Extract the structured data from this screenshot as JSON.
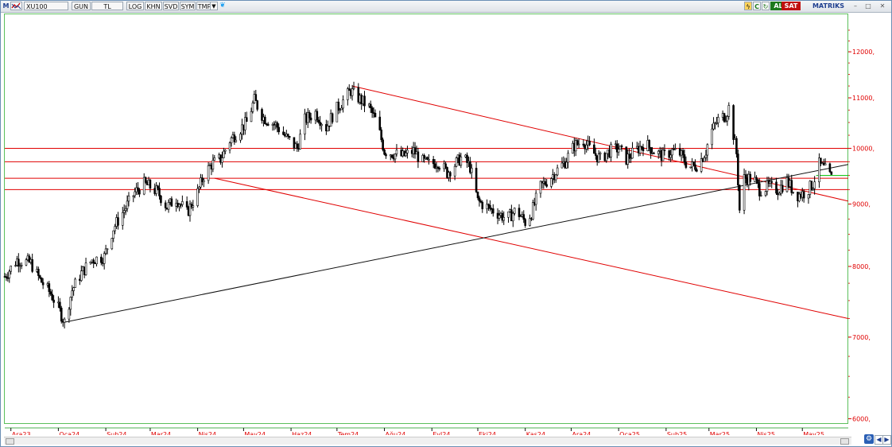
{
  "toolbar": {
    "logo": "M",
    "symbol": "XU100",
    "buttons": [
      "GUN",
      "TL",
      "LOG",
      "KHN",
      "SVD",
      "SYM",
      "TMP"
    ],
    "buy_label": "AL",
    "sell_label": "SAT",
    "brand": "MATRIKS",
    "brand_color": "#1f3f8f",
    "buy_color": "#1e7a1e",
    "sell_color": "#c01010",
    "icons": [
      "chart-type-icon",
      "dropdown-icon",
      "twitter-icon",
      "lightning-icon",
      "info-icon",
      "refresh-icon",
      "minimize-icon",
      "maximize-icon",
      "close-icon",
      "link-icon",
      "scroll-left-icon",
      "scroll-right-icon"
    ]
  },
  "chart_data": {
    "type": "candlestick",
    "title": "",
    "xlabel": "",
    "ylabel": "",
    "y_scale": "log",
    "ylim": [
      5950,
      12900
    ],
    "y_ticks": [
      {
        "value": 6000,
        "label": "6000,"
      },
      {
        "value": 7000,
        "label": "7000,"
      },
      {
        "value": 8000,
        "label": "8000,"
      },
      {
        "value": 9000,
        "label": "9000,"
      },
      {
        "value": 10000,
        "label": "10000,"
      },
      {
        "value": 11000,
        "label": "11000,"
      },
      {
        "value": 12000,
        "label": "12000,"
      }
    ],
    "x_range": [
      "2023-11-27",
      "2025-05-31"
    ],
    "x_ticks": [
      {
        "date": "2023-12-01",
        "label": "Ara23"
      },
      {
        "date": "2024-01-01",
        "label": "Oca24"
      },
      {
        "date": "2024-02-01",
        "label": "Şub24"
      },
      {
        "date": "2024-03-01",
        "label": "Mar24"
      },
      {
        "date": "2024-04-01",
        "label": "Nis24"
      },
      {
        "date": "2024-05-01",
        "label": "May24"
      },
      {
        "date": "2024-06-01",
        "label": "Haz24"
      },
      {
        "date": "2024-07-01",
        "label": "Tem24"
      },
      {
        "date": "2024-08-01",
        "label": "Ağu24"
      },
      {
        "date": "2024-09-01",
        "label": "Eyl24"
      },
      {
        "date": "2024-10-01",
        "label": "Eki24"
      },
      {
        "date": "2024-11-01",
        "label": "Kas24"
      },
      {
        "date": "2024-12-01",
        "label": "Ara24"
      },
      {
        "date": "2025-01-01",
        "label": "Oca25"
      },
      {
        "date": "2025-02-01",
        "label": "Şub25"
      },
      {
        "date": "2025-03-01",
        "label": "Mar25"
      },
      {
        "date": "2025-04-01",
        "label": "Nis25"
      },
      {
        "date": "2025-05-01",
        "label": "May25"
      }
    ],
    "price_path": [
      [
        "2023-11-27",
        7850
      ],
      [
        "2023-12-05",
        8100
      ],
      [
        "2023-12-14",
        8050
      ],
      [
        "2023-12-20",
        7800
      ],
      [
        "2023-12-27",
        7600
      ],
      [
        "2024-01-02",
        7350
      ],
      [
        "2024-01-05",
        7200
      ],
      [
        "2024-01-10",
        7650
      ],
      [
        "2024-01-16",
        7900
      ],
      [
        "2024-01-23",
        8100
      ],
      [
        "2024-01-31",
        8150
      ],
      [
        "2024-02-06",
        8600
      ],
      [
        "2024-02-13",
        8900
      ],
      [
        "2024-02-20",
        9200
      ],
      [
        "2024-02-26",
        9350
      ],
      [
        "2024-03-01",
        9300
      ],
      [
        "2024-03-06",
        9200
      ],
      [
        "2024-03-12",
        8950
      ],
      [
        "2024-03-18",
        9100
      ],
      [
        "2024-03-25",
        8850
      ],
      [
        "2024-04-01",
        9200
      ],
      [
        "2024-04-05",
        9500
      ],
      [
        "2024-04-10",
        9700
      ],
      [
        "2024-04-16",
        9800
      ],
      [
        "2024-04-22",
        10150
      ],
      [
        "2024-04-28",
        10350
      ],
      [
        "2024-05-03",
        10500
      ],
      [
        "2024-05-08",
        10950
      ],
      [
        "2024-05-14",
        10600
      ],
      [
        "2024-05-22",
        10450
      ],
      [
        "2024-05-29",
        10200
      ],
      [
        "2024-06-05",
        10000
      ],
      [
        "2024-06-10",
        10550
      ],
      [
        "2024-06-17",
        10700
      ],
      [
        "2024-06-24",
        10400
      ],
      [
        "2024-06-29",
        10700
      ],
      [
        "2024-07-04",
        10900
      ],
      [
        "2024-07-10",
        11150
      ],
      [
        "2024-07-15",
        11000
      ],
      [
        "2024-07-22",
        10800
      ],
      [
        "2024-07-27",
        10500
      ],
      [
        "2024-08-01",
        9950
      ],
      [
        "2024-08-07",
        9900
      ],
      [
        "2024-08-13",
        9850
      ],
      [
        "2024-08-20",
        9950
      ],
      [
        "2024-08-26",
        9750
      ],
      [
        "2024-08-31",
        9700
      ],
      [
        "2024-09-05",
        9750
      ],
      [
        "2024-09-11",
        9550
      ],
      [
        "2024-09-16",
        9700
      ],
      [
        "2024-09-21",
        9850
      ],
      [
        "2024-09-26",
        9650
      ],
      [
        "2024-10-01",
        9050
      ],
      [
        "2024-10-07",
        8950
      ],
      [
        "2024-10-14",
        8850
      ],
      [
        "2024-10-20",
        8750
      ],
      [
        "2024-10-26",
        8900
      ],
      [
        "2024-11-01",
        8700
      ],
      [
        "2024-11-05",
        8850
      ],
      [
        "2024-11-11",
        9300
      ],
      [
        "2024-11-17",
        9450
      ],
      [
        "2024-11-22",
        9600
      ],
      [
        "2024-11-27",
        9750
      ],
      [
        "2024-12-03",
        10050
      ],
      [
        "2024-12-09",
        10150
      ],
      [
        "2024-12-14",
        9950
      ],
      [
        "2024-12-20",
        9800
      ],
      [
        "2024-12-26",
        9950
      ],
      [
        "2025-01-01",
        10000
      ],
      [
        "2025-01-06",
        9800
      ],
      [
        "2025-01-12",
        9950
      ],
      [
        "2025-01-18",
        10100
      ],
      [
        "2025-01-24",
        9950
      ],
      [
        "2025-01-30",
        9850
      ],
      [
        "2025-02-05",
        9950
      ],
      [
        "2025-02-10",
        9900
      ],
      [
        "2025-02-16",
        9650
      ],
      [
        "2025-02-22",
        9700
      ],
      [
        "2025-02-27",
        9950
      ],
      [
        "2025-03-02",
        10300
      ],
      [
        "2025-03-07",
        10550
      ],
      [
        "2025-03-12",
        10650
      ],
      [
        "2025-03-14",
        10800
      ],
      [
        "2025-03-19",
        9900
      ],
      [
        "2025-03-21",
        8900
      ],
      [
        "2025-03-24",
        9450
      ],
      [
        "2025-03-30",
        9450
      ],
      [
        "2025-04-03",
        9250
      ],
      [
        "2025-04-09",
        9300
      ],
      [
        "2025-04-15",
        9250
      ],
      [
        "2025-04-21",
        9400
      ],
      [
        "2025-04-27",
        9150
      ],
      [
        "2025-05-03",
        9200
      ],
      [
        "2025-05-08",
        9350
      ],
      [
        "2025-05-12",
        9700
      ],
      [
        "2025-05-16",
        9600
      ],
      [
        "2025-05-20",
        9450
      ]
    ],
    "horizontal_lines": [
      {
        "value": 10000,
        "color": "#e00000"
      },
      {
        "value": 9750,
        "color": "#e00000"
      },
      {
        "value": 9450,
        "color": "#e00000"
      },
      {
        "value": 9250,
        "color": "#e00000"
      },
      {
        "value": 9500,
        "color": "#00c000",
        "from_date": "2025-05-10"
      }
    ],
    "trend_lines": [
      {
        "from": [
          "2024-07-11",
          11250
        ],
        "to": [
          "2025-05-31",
          9050
        ],
        "color": "#e00000"
      },
      {
        "from": [
          "2024-04-12",
          9450
        ],
        "to": [
          "2025-05-31",
          7250
        ],
        "color": "#e00000"
      },
      {
        "from": [
          "2024-01-05",
          7200
        ],
        "to": [
          "2025-05-31",
          9700
        ],
        "color": "#111111"
      }
    ],
    "grid": false,
    "axis_color": "#e00000"
  }
}
